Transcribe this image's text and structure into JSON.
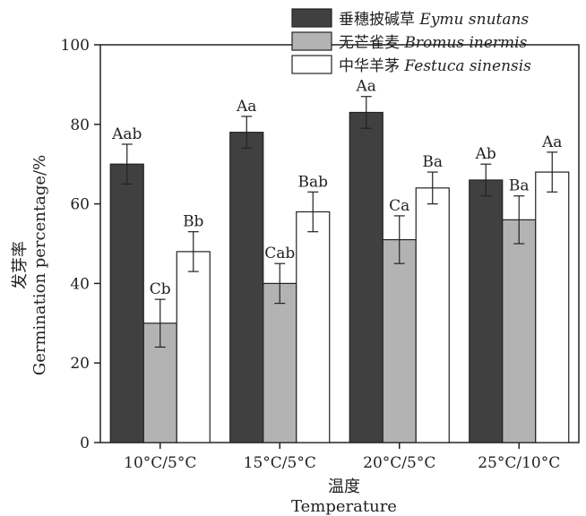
{
  "chart_data": {
    "type": "bar",
    "categories": [
      "10°C/5°C",
      "15°C/5°C",
      "20°C/5°C",
      "25°C/10°C"
    ],
    "series": [
      {
        "name": "垂穗披碱草",
        "name_latin": "Eymu snutans",
        "color": "#404040",
        "values": [
          70,
          78,
          83,
          66
        ],
        "errors": [
          5,
          4,
          4,
          4
        ],
        "labels": [
          "Aab",
          "Aa",
          "Aa",
          "Ab"
        ]
      },
      {
        "name": "无芒雀麦",
        "name_latin": "Bromus inermis",
        "color": "#b3b3b3",
        "values": [
          30,
          40,
          51,
          56
        ],
        "errors": [
          6,
          5,
          6,
          6
        ],
        "labels": [
          "Cb",
          "Cab",
          "Ca",
          "Ba"
        ]
      },
      {
        "name": "中华羊茅",
        "name_latin": "Festuca sinensis",
        "color": "#ffffff",
        "values": [
          48,
          58,
          64,
          68
        ],
        "errors": [
          5,
          5,
          4,
          5
        ],
        "labels": [
          "Bb",
          "Bab",
          "Ba",
          "Aa"
        ]
      }
    ],
    "xlabel_cn": "温度",
    "xlabel": "Temperature",
    "ylabel_cn": "发芽率",
    "ylabel": "Germination percentage/%",
    "ylim": [
      0,
      100
    ],
    "yticks": [
      0,
      20,
      40,
      60,
      80,
      100
    ],
    "grid": false,
    "legend_position": "top-right"
  }
}
